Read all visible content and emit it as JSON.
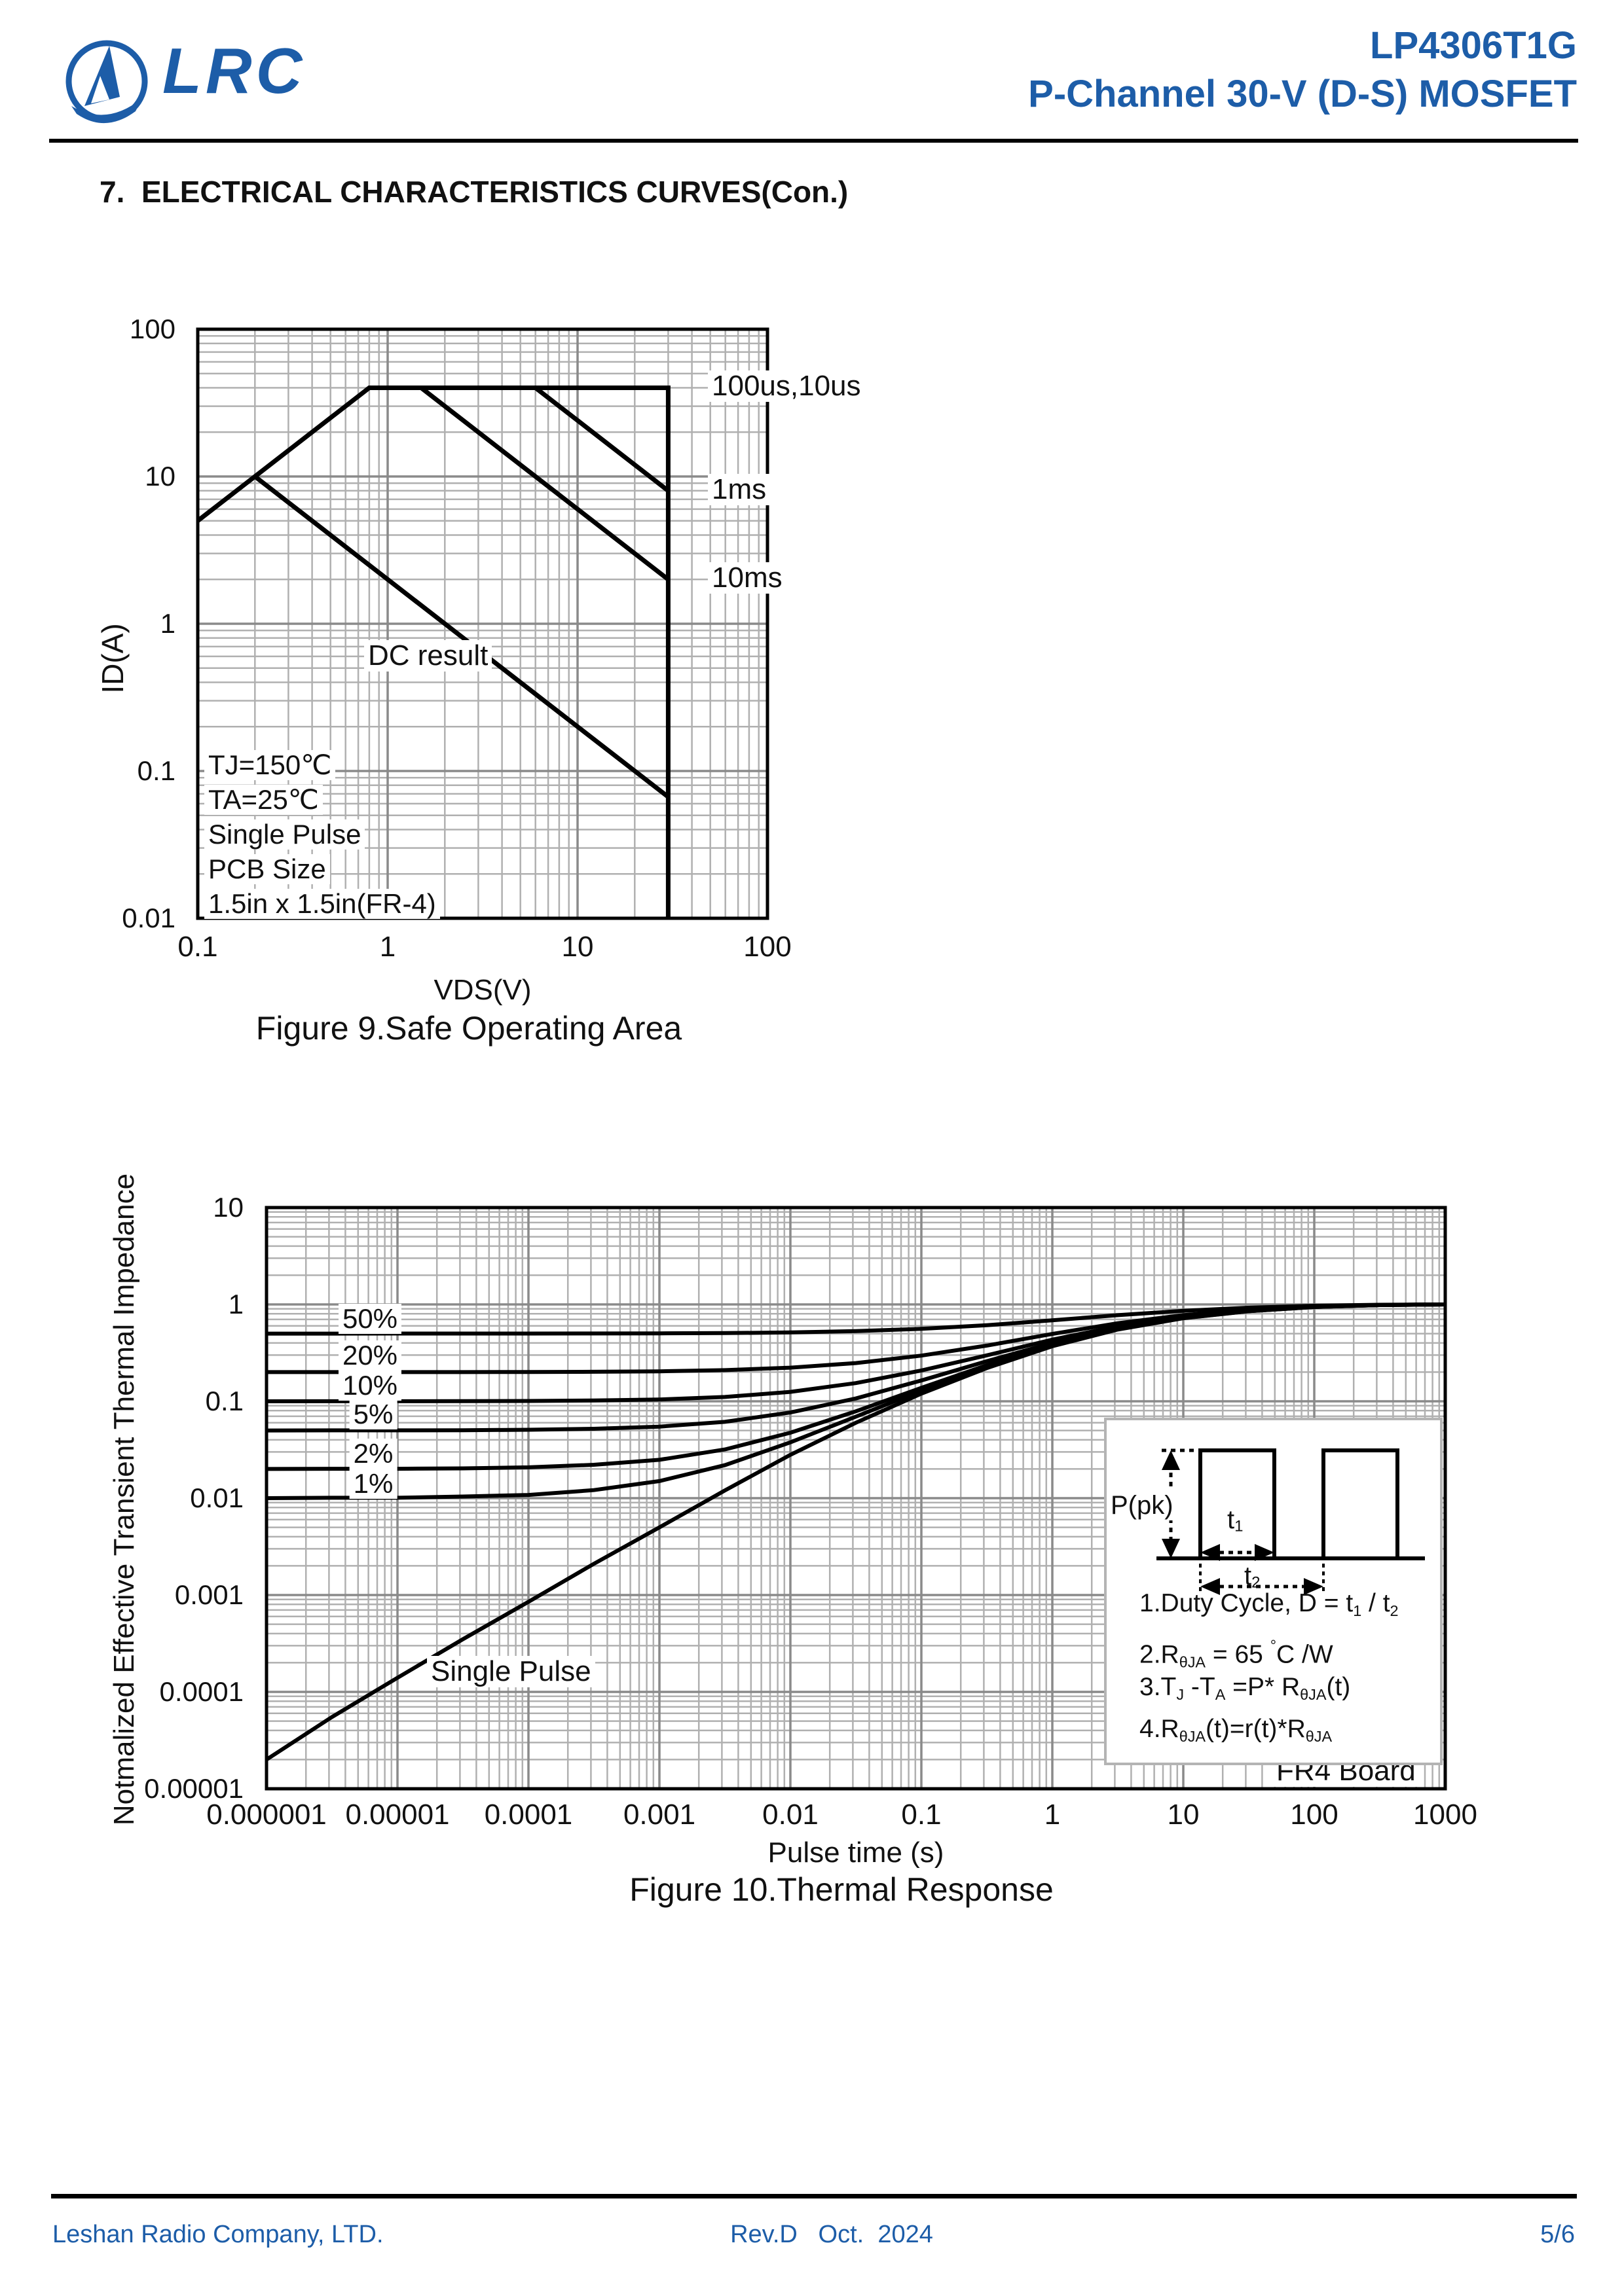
{
  "header": {
    "logo_text": "LRC",
    "part_number": "LP4306T1G",
    "subtitle": "P-Channel 30-V (D-S) MOSFET"
  },
  "section": {
    "title": "7.  ELECTRICAL CHARACTERISTICS CURVES(Con.)"
  },
  "fig9_labels": {
    "conditions": [
      "TJ=150℃",
      "TA=25℃",
      "Single Pulse",
      "PCB Size",
      "1.5in x 1.5in(FR-4)"
    ]
  },
  "fig10_labels": {
    "fr4": "FR4 Board"
  },
  "inset": {
    "ppk": "P(pk)",
    "t1": [
      [
        "n",
        "t"
      ],
      [
        "s",
        "1"
      ]
    ],
    "t2": [
      [
        "n",
        "t"
      ],
      [
        "s",
        "2"
      ]
    ],
    "equations": [
      [
        [
          "n",
          "1.Duty Cycle, D = t"
        ],
        [
          "s",
          "1"
        ],
        [
          "n",
          " / t"
        ],
        [
          "s",
          "2"
        ]
      ],
      [
        [
          "n",
          "2.R"
        ],
        [
          "s",
          "θJA"
        ],
        [
          "n",
          " = 65 "
        ],
        [
          "sup",
          "°"
        ],
        [
          "n",
          "C /W"
        ]
      ],
      [
        [
          "n",
          "3.T"
        ],
        [
          "s",
          "J"
        ],
        [
          "n",
          " -T"
        ],
        [
          "s",
          "A"
        ],
        [
          "n",
          " =P* R"
        ],
        [
          "s",
          "θJA"
        ],
        [
          "n",
          "(t)"
        ]
      ],
      [
        [
          "n",
          "4.R"
        ],
        [
          "s",
          "θJA"
        ],
        [
          "n",
          "(t)=r(t)*R"
        ],
        [
          "s",
          "θJA"
        ]
      ]
    ]
  },
  "footer": {
    "company": "Leshan Radio Company, LTD.",
    "revision": "Rev.D   Oct.  2024",
    "page": "5/6"
  },
  "colors": {
    "accent": "#1d5da8",
    "grid_minor": "#b0b0b0",
    "grid_major": "#8a8a8a",
    "ink": "#111111"
  },
  "chart_data": [
    {
      "id": "fig9",
      "type": "line",
      "title": "Figure 9.Safe Operating Area",
      "xlabel": "VDS(V)",
      "ylabel": "ID(A)",
      "xscale": "log",
      "yscale": "log",
      "xlim": [
        0.1,
        100
      ],
      "ylim": [
        0.01,
        100
      ],
      "grid": true,
      "legend": "inline-labels",
      "x_ticks": [
        {
          "v": 0.1,
          "t": "0.1"
        },
        {
          "v": 1,
          "t": "1"
        },
        {
          "v": 10,
          "t": "10"
        },
        {
          "v": 100,
          "t": "100"
        }
      ],
      "y_ticks": [
        {
          "v": 100,
          "t": "100"
        },
        {
          "v": 10,
          "t": "10"
        },
        {
          "v": 1,
          "t": "1"
        },
        {
          "v": 0.1,
          "t": "0.1"
        },
        {
          "v": 0.01,
          "t": "0.01"
        }
      ],
      "series": [
        {
          "name": "100us,10us",
          "points": [
            [
              0.1,
              5
            ],
            [
              0.8,
              40
            ],
            [
              30,
              40
            ],
            [
              30,
              0.01
            ]
          ]
        },
        {
          "name": "1ms",
          "points": [
            [
              6,
              40
            ],
            [
              30,
              8
            ]
          ]
        },
        {
          "name": "10ms",
          "points": [
            [
              1.5,
              40
            ],
            [
              30,
              2
            ]
          ]
        },
        {
          "name": "DC result",
          "points": [
            [
              0.2,
              10
            ],
            [
              30,
              0.0667
            ]
          ]
        }
      ]
    },
    {
      "id": "fig10",
      "type": "line",
      "title": "Figure 10.Thermal Response",
      "xlabel": "Pulse time (s)",
      "ylabel": "Notmalized Effective Transient Thermal Impedance",
      "xscale": "log",
      "yscale": "log",
      "xlim": [
        1e-06,
        1000
      ],
      "ylim": [
        1e-05,
        10
      ],
      "grid": true,
      "legend": "inline-labels",
      "x_ticks": [
        {
          "v": 1e-06,
          "t": "0.000001"
        },
        {
          "v": 1e-05,
          "t": "0.00001"
        },
        {
          "v": 0.0001,
          "t": "0.0001"
        },
        {
          "v": 0.001,
          "t": "0.001"
        },
        {
          "v": 0.01,
          "t": "0.01"
        },
        {
          "v": 0.1,
          "t": "0.1"
        },
        {
          "v": 1,
          "t": "1"
        },
        {
          "v": 10,
          "t": "10"
        },
        {
          "v": 100,
          "t": "100"
        },
        {
          "v": 1000,
          "t": "1000"
        }
      ],
      "y_ticks": [
        {
          "v": 10,
          "t": "10"
        },
        {
          "v": 1,
          "t": "1"
        },
        {
          "v": 0.1,
          "t": "0.1"
        },
        {
          "v": 0.01,
          "t": "0.01"
        },
        {
          "v": 0.001,
          "t": "0.001"
        },
        {
          "v": 0.0001,
          "t": "0.0001"
        },
        {
          "v": 1e-05,
          "t": "0.00001"
        }
      ],
      "x": [
        1e-06,
        3.16e-06,
        1e-05,
        3.16e-05,
        0.0001,
        0.000316,
        0.001,
        0.00316,
        0.01,
        0.0316,
        0.1,
        0.316,
        1,
        3.16,
        10,
        31.6,
        100,
        316,
        1000
      ],
      "series": [
        {
          "name": "50%",
          "values": [
            0.5,
            0.5,
            0.5001,
            0.5002,
            0.5004,
            0.501,
            0.5025,
            0.506,
            0.514,
            0.53,
            0.56,
            0.61,
            0.685,
            0.775,
            0.86,
            0.925,
            0.97,
            0.993,
            1.0
          ]
        },
        {
          "name": "20%",
          "values": [
            0.2,
            0.2,
            0.2001,
            0.2003,
            0.2007,
            0.2017,
            0.204,
            0.2096,
            0.2224,
            0.248,
            0.296,
            0.376,
            0.496,
            0.64,
            0.776,
            0.88,
            0.952,
            0.988,
            1.0
          ]
        },
        {
          "name": "10%",
          "values": [
            0.1,
            0.1001,
            0.1001,
            0.1003,
            0.1008,
            0.1019,
            0.1045,
            0.1108,
            0.1252,
            0.154,
            0.208,
            0.298,
            0.433,
            0.595,
            0.748,
            0.865,
            0.946,
            0.9865,
            1.0
          ]
        },
        {
          "name": "5%",
          "values": [
            0.05,
            0.0501,
            0.0501,
            0.0503,
            0.0508,
            0.052,
            0.0548,
            0.0614,
            0.0766,
            0.107,
            0.164,
            0.259,
            0.4,
            0.5725,
            0.734,
            0.8575,
            0.943,
            0.9858,
            1.0
          ]
        },
        {
          "name": "2%",
          "values": [
            0.02,
            0.0201,
            0.0201,
            0.0203,
            0.0208,
            0.0221,
            0.0249,
            0.0318,
            0.0474,
            0.0788,
            0.1376,
            0.2356,
            0.3826,
            0.559,
            0.7256,
            0.853,
            0.9412,
            0.9853,
            1.0
          ]
        },
        {
          "name": "1%",
          "values": [
            0.01,
            0.0101,
            0.0101,
            0.0104,
            0.0108,
            0.0121,
            0.015,
            0.0219,
            0.0377,
            0.0694,
            0.1288,
            0.2278,
            0.3763,
            0.5545,
            0.7228,
            0.8515,
            0.9406,
            0.9852,
            1.0
          ]
        },
        {
          "name": "Single Pulse",
          "values": [
            2e-05,
            5.5e-05,
            0.00014,
            0.00035,
            0.00085,
            0.0021,
            0.005,
            0.012,
            0.028,
            0.06,
            0.12,
            0.22,
            0.37,
            0.55,
            0.72,
            0.85,
            0.94,
            0.985,
            1.0
          ]
        }
      ]
    }
  ]
}
